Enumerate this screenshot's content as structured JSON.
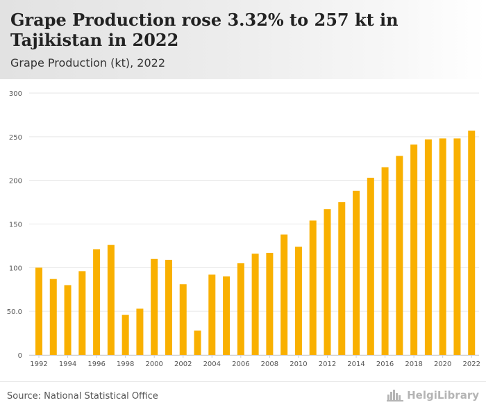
{
  "header": {
    "title": "Grape Production rose 3.32% to 257 kt in Tajikistan in 2022",
    "subtitle": "Grape Production (kt), 2022"
  },
  "footer": {
    "source": "Source: National Statistical Office",
    "logo_text": "HelgiLibrary",
    "logo_icon": "city-skyline-icon"
  },
  "colors": {
    "bar": "#F9B000",
    "grid": "#e6e6e6",
    "tick_text": "#555555"
  },
  "chart_data": {
    "type": "bar",
    "title": "Grape Production rose 3.32% to 257 kt in Tajikistan in 2022",
    "subtitle": "Grape Production (kt), 2022",
    "xlabel": "",
    "ylabel": "",
    "categories": [
      "1992",
      "1993",
      "1994",
      "1995",
      "1996",
      "1997",
      "1998",
      "1999",
      "2000",
      "2001",
      "2002",
      "2003",
      "2004",
      "2005",
      "2006",
      "2007",
      "2008",
      "2009",
      "2010",
      "2011",
      "2012",
      "2013",
      "2014",
      "2015",
      "2016",
      "2017",
      "2018",
      "2019",
      "2020",
      "2021",
      "2022"
    ],
    "x_tick_labels": [
      "1992",
      "1994",
      "1996",
      "1998",
      "2000",
      "2002",
      "2004",
      "2006",
      "2008",
      "2010",
      "2012",
      "2014",
      "2016",
      "2018",
      "2020",
      "2022"
    ],
    "values": [
      100,
      87,
      80,
      96,
      121,
      126,
      46,
      53,
      110,
      109,
      81,
      28,
      92,
      90,
      105,
      116,
      117,
      138,
      124,
      154,
      167,
      175,
      188,
      203,
      215,
      228,
      241,
      247,
      248,
      248,
      257
    ],
    "ylim": [
      0,
      300
    ],
    "y_ticks": [
      0,
      50,
      100,
      150,
      200,
      250,
      300
    ],
    "y_tick_labels": [
      "0",
      "50.0",
      "100",
      "150",
      "200",
      "250",
      "300"
    ],
    "grid": true,
    "legend": "none"
  }
}
